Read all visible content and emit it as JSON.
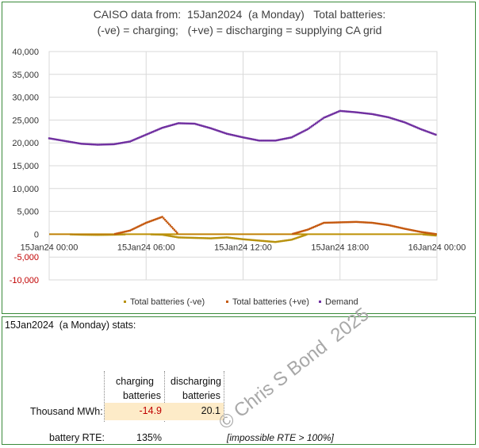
{
  "chart_data": {
    "type": "scatter",
    "title_line1": "CAISO data from:  15Jan2024  (a Monday)   Total batteries:",
    "title_line2": "(-ve) = charging;   (+ve) = discharging = supplying CA grid",
    "ylim": [
      -10000,
      40000
    ],
    "y_ticks": [
      "40,000",
      "35,000",
      "30,000",
      "25,000",
      "20,000",
      "15,000",
      "10,000",
      "5,000",
      "0",
      "-5,000",
      "-10,000"
    ],
    "x_ticks": [
      "15Jan24 00:00",
      "15Jan24 06:00",
      "15Jan24 12:00",
      "15Jan24 18:00",
      "16Jan24 00:00"
    ],
    "xlim_hours": [
      0,
      24
    ],
    "grid": true,
    "legend_position": "bottom",
    "series": [
      {
        "name": "Total batteries (-ve)",
        "color": "#b8920f",
        "marker": "square",
        "x": [
          0,
          1,
          2,
          3,
          4,
          5,
          6,
          7,
          8,
          9,
          10,
          11,
          12,
          13,
          14,
          15,
          16,
          17,
          18,
          19,
          20,
          21,
          22,
          23,
          24
        ],
        "y": [
          0,
          0,
          -100,
          -150,
          -100,
          0,
          0,
          -100,
          -700,
          -800,
          -900,
          -700,
          -1100,
          -1400,
          -1700,
          -1200,
          0,
          0,
          0,
          0,
          0,
          0,
          0,
          0,
          -300
        ]
      },
      {
        "name": "Total batteries (+ve)",
        "color": "#c55a11",
        "marker": "square",
        "x": [
          0,
          1,
          2,
          3,
          4,
          5,
          6,
          7,
          8,
          9,
          10,
          11,
          12,
          13,
          14,
          15,
          16,
          17,
          18,
          19,
          20,
          21,
          22,
          23,
          24
        ],
        "y": [
          0,
          0,
          0,
          0,
          0,
          800,
          2500,
          3800,
          0,
          0,
          0,
          0,
          0,
          0,
          0,
          0,
          1000,
          2500,
          2600,
          2700,
          2500,
          2000,
          1200,
          500,
          0
        ]
      },
      {
        "name": "Demand",
        "color": "#7030a0",
        "marker": "diamond",
        "x": [
          0,
          1,
          2,
          3,
          4,
          5,
          6,
          7,
          8,
          9,
          10,
          11,
          12,
          13,
          14,
          15,
          16,
          17,
          18,
          19,
          20,
          21,
          22,
          23,
          24
        ],
        "y": [
          21000,
          20400,
          19800,
          19600,
          19700,
          20300,
          21800,
          23300,
          24300,
          24200,
          23200,
          22000,
          21200,
          20500,
          20500,
          21200,
          23000,
          25500,
          27000,
          26700,
          26300,
          25600,
          24500,
          23000,
          21700
        ]
      }
    ]
  },
  "stats": {
    "title": "15Jan2024  (a Monday) stats:",
    "col1_line1": "charging",
    "col1_line2": "batteries",
    "col2_line1": "discharging",
    "col2_line2": "batteries",
    "row_label": "Thousand MWh:",
    "charging_value": "-14.9",
    "discharging_value": "20.1",
    "rte_label": "battery RTE:",
    "rte_value": "135%",
    "rte_note": "[impossible RTE > 100%]",
    "watermark": "© Chris S Bond  2025"
  },
  "colors": {
    "frame": "#3a8a3a",
    "negative_tick": "#c00000",
    "grid": "#d9d9d9",
    "highlight": "#fdebc8"
  }
}
